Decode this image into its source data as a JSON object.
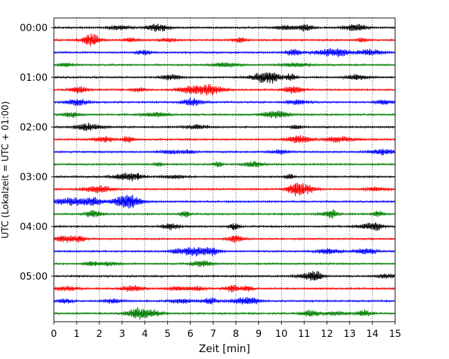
{
  "chart_data": {
    "type": "line",
    "title": "",
    "xlabel": "Zeit  [min]",
    "ylabel": "UTC (Lokalzeit = UTC + 01:00)",
    "xlim": [
      0,
      15
    ],
    "x_ticks": [
      0,
      1,
      2,
      3,
      4,
      5,
      6,
      7,
      8,
      9,
      10,
      11,
      12,
      13,
      14,
      15
    ],
    "x_tick_labels": [
      "0",
      "1",
      "2",
      "3",
      "4",
      "5",
      "6",
      "7",
      "8",
      "9",
      "10",
      "11",
      "12",
      "13",
      "14",
      "15"
    ],
    "y_tick_labels": [
      "00:00",
      "01:00",
      "02:00",
      "03:00",
      "04:00",
      "05:00"
    ],
    "y_tick_trace_index": [
      0,
      4,
      8,
      12,
      16,
      20
    ],
    "trace_interval_minutes": 15,
    "trace_count": 24,
    "trace_colors": [
      "#000000",
      "#ff0000",
      "#0000ff",
      "#008000"
    ],
    "vertical_grid": "dotted",
    "legend": "none"
  }
}
